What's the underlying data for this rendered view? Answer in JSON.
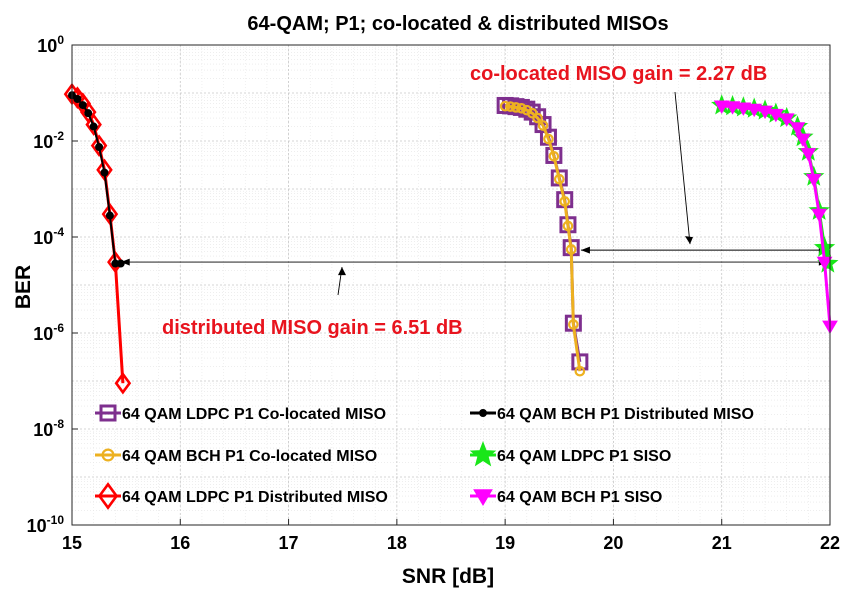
{
  "chart_data": {
    "type": "line",
    "title": "64-QAM; P1; co-located & distributed MISOs",
    "xlabel": "SNR [dB]",
    "ylabel": "BER",
    "xlim": [
      15,
      22
    ],
    "ylim": [
      1e-10,
      1
    ],
    "y_scale": "log",
    "grid": true,
    "x_ticks": [
      "15",
      "16",
      "17",
      "18",
      "19",
      "20",
      "21",
      "22"
    ],
    "y_ticks": [
      {
        "base": "10",
        "exp": "0",
        "value": 1
      },
      {
        "base": "10",
        "exp": "-2",
        "value": 0.01
      },
      {
        "base": "10",
        "exp": "-4",
        "value": 0.0001
      },
      {
        "base": "10",
        "exp": "-6",
        "value": 1e-06
      },
      {
        "base": "10",
        "exp": "-8",
        "value": 1e-08
      },
      {
        "base": "10",
        "exp": "-10",
        "value": 1e-10
      }
    ],
    "legend_position": "bottom-left",
    "series": [
      {
        "name": "64 QAM LDPC P1 Co-located MISO",
        "color": "#7e2f8e",
        "marker": "square",
        "x": [
          19.0,
          19.05,
          19.1,
          19.15,
          19.2,
          19.25,
          19.3,
          19.35,
          19.4,
          19.45,
          19.5,
          19.55,
          19.58,
          19.61,
          19.63,
          19.69
        ],
        "y": [
          0.055,
          0.054,
          0.052,
          0.05,
          0.046,
          0.04,
          0.032,
          0.022,
          0.012,
          0.005,
          0.0017,
          0.0006,
          0.00018,
          6e-05,
          1.6e-06,
          2.5e-07
        ]
      },
      {
        "name": "64 QAM BCH   P1 Co-located MISO",
        "color": "#edb120",
        "marker": "circle",
        "x": [
          19.0,
          19.05,
          19.1,
          19.15,
          19.2,
          19.25,
          19.3,
          19.35,
          19.4,
          19.45,
          19.5,
          19.55,
          19.58,
          19.61,
          19.63,
          19.69
        ],
        "y": [
          0.053,
          0.052,
          0.05,
          0.048,
          0.044,
          0.038,
          0.03,
          0.021,
          0.011,
          0.0048,
          0.0016,
          0.00055,
          0.00017,
          5.5e-05,
          1.5e-06,
          1.6e-07
        ]
      },
      {
        "name": "64 QAM LDPC P1 Distributed MISO",
        "color": "#ff0000",
        "marker": "diamond",
        "x": [
          15.0,
          15.05,
          15.1,
          15.15,
          15.2,
          15.25,
          15.3,
          15.35,
          15.4,
          15.47
        ],
        "y": [
          0.095,
          0.08,
          0.06,
          0.04,
          0.022,
          0.008,
          0.0025,
          0.0003,
          3e-05,
          9e-08
        ]
      },
      {
        "name": "64 QAM BCH   P1 Distributed MISO",
        "color": "#000000",
        "marker": "dot",
        "x": [
          15.0,
          15.05,
          15.1,
          15.15,
          15.2,
          15.25,
          15.3,
          15.35,
          15.4,
          15.45
        ],
        "y": [
          0.09,
          0.075,
          0.056,
          0.038,
          0.02,
          0.0075,
          0.0022,
          0.00028,
          2.8e-05,
          2.8e-05
        ]
      },
      {
        "name": "64 QAM LDPC P1 SISO",
        "color": "#19e619",
        "marker": "star",
        "x": [
          21.0,
          21.1,
          21.2,
          21.3,
          21.4,
          21.5,
          21.6,
          21.7,
          21.75,
          21.8,
          21.85,
          21.9,
          21.95,
          21.98
        ],
        "y": [
          0.055,
          0.053,
          0.05,
          0.047,
          0.043,
          0.037,
          0.03,
          0.02,
          0.012,
          0.006,
          0.0018,
          0.00035,
          6e-05,
          2.8e-05
        ]
      },
      {
        "name": "64 QAM BCH   P1 SISO",
        "color": "#ff00ff",
        "marker": "triangle-down",
        "x": [
          21.0,
          21.1,
          21.2,
          21.3,
          21.4,
          21.5,
          21.6,
          21.7,
          21.75,
          21.8,
          21.85,
          21.9,
          21.95,
          22.0
        ],
        "y": [
          0.054,
          0.052,
          0.049,
          0.046,
          0.042,
          0.036,
          0.029,
          0.019,
          0.011,
          0.0055,
          0.0016,
          0.0003,
          3e-05,
          1.4e-06
        ]
      }
    ],
    "annotations": [
      {
        "text": "co-located MISO gain = 2.27 dB",
        "color": "#e8141e"
      },
      {
        "text": "distributed MISO gain = 6.51 dB",
        "color": "#e8141e"
      }
    ],
    "reference_lines": {
      "ber_level": 3e-05,
      "distributed_from_x": 15.45,
      "colocated_from_x": 19.7,
      "to_x": 21.98
    }
  }
}
